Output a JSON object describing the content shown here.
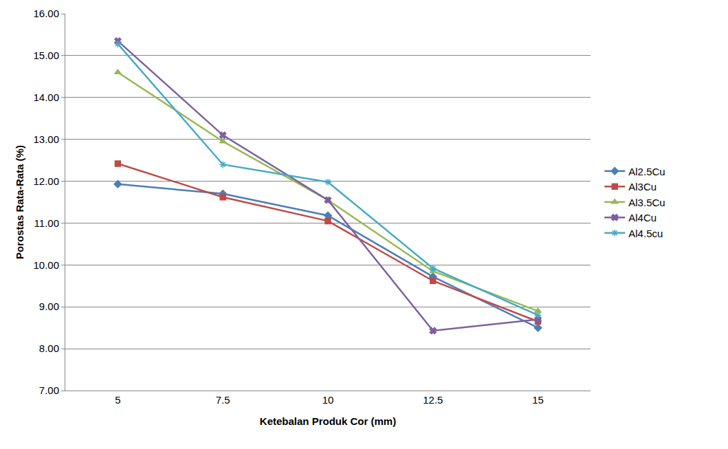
{
  "chart_data": {
    "type": "line",
    "x_label": "Ketebalan Produk Cor (mm)",
    "y_label": "Porostas Rata-Rata (%)",
    "categories": [
      "5",
      "7.5",
      "10",
      "12.5",
      "15"
    ],
    "series": [
      {
        "name": "Al2.5Cu",
        "color": "#4a7ebb",
        "marker": "diamond",
        "values": [
          11.93,
          11.7,
          11.18,
          9.72,
          8.5
        ]
      },
      {
        "name": "Al3Cu",
        "color": "#be4b48",
        "marker": "square",
        "values": [
          12.42,
          11.62,
          11.05,
          9.62,
          8.65
        ]
      },
      {
        "name": "Al3.5Cu",
        "color": "#98b954",
        "marker": "triangle-up",
        "values": [
          14.6,
          12.95,
          11.55,
          9.85,
          8.9
        ]
      },
      {
        "name": "Al4Cu",
        "color": "#7d60a0",
        "marker": "x",
        "values": [
          15.35,
          13.1,
          11.55,
          8.43,
          8.7
        ]
      },
      {
        "name": "Al4.5cu",
        "color": "#46aac5",
        "marker": "asterisk",
        "values": [
          15.28,
          12.4,
          11.98,
          9.92,
          8.8
        ]
      }
    ],
    "ylim": [
      7,
      16
    ],
    "yticks": [
      {
        "value": 7,
        "label": "7.00"
      },
      {
        "value": 8,
        "label": "8.00"
      },
      {
        "value": 9,
        "label": "9.00"
      },
      {
        "value": 10,
        "label": "10.00"
      },
      {
        "value": 11,
        "label": "11.00"
      },
      {
        "value": 12,
        "label": "12.00"
      },
      {
        "value": 13,
        "label": "13.00"
      },
      {
        "value": 14,
        "label": "14.00"
      },
      {
        "value": 15,
        "label": "15.00"
      },
      {
        "value": 16,
        "label": "16.00"
      }
    ],
    "grid": true,
    "legend": "right"
  }
}
